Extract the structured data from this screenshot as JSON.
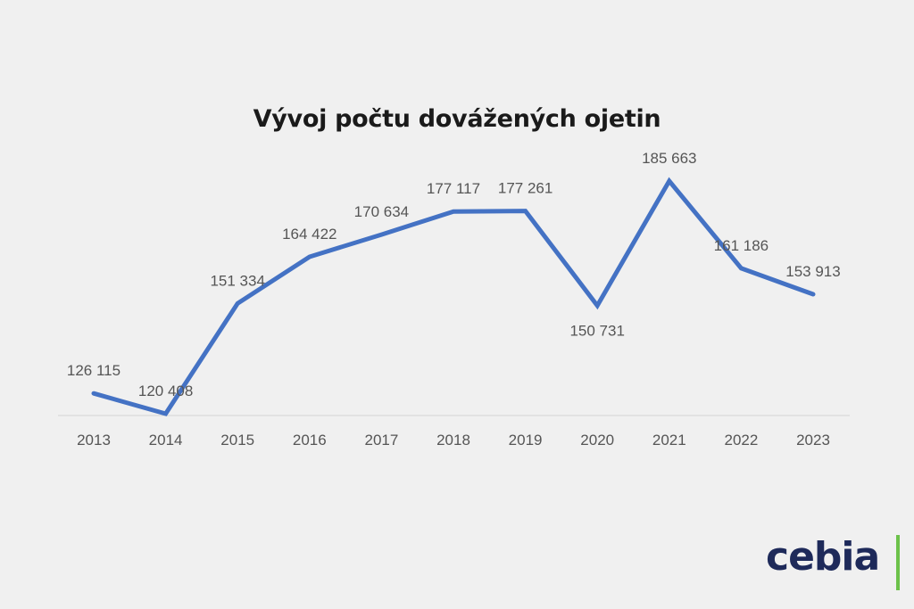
{
  "chart_data": {
    "type": "line",
    "title": "Vývoj počtu dovážených ojetin",
    "xlabel": "",
    "ylabel": "",
    "categories": [
      "2013",
      "2014",
      "2015",
      "2016",
      "2017",
      "2018",
      "2019",
      "2020",
      "2021",
      "2022",
      "2023"
    ],
    "series": [
      {
        "values": [
          126115,
          120408,
          151334,
          164422,
          170634,
          177117,
          177261,
          150731,
          185663,
          161186,
          153913
        ],
        "labels": [
          "126 115",
          "120 408",
          "151 334",
          "164 422",
          "170 634",
          "177 117",
          "177 261",
          "150 731",
          "185 663",
          "161 186",
          "153 913"
        ],
        "color": "#4472c4"
      }
    ],
    "label_positions": [
      "above",
      "above",
      "above",
      "above",
      "above",
      "above",
      "above",
      "below",
      "above",
      "above",
      "above"
    ],
    "grid": false,
    "legend": "none"
  },
  "logo": {
    "text": "cebia",
    "color": "#1e2a5a",
    "accent_color": "#6cc24a"
  }
}
